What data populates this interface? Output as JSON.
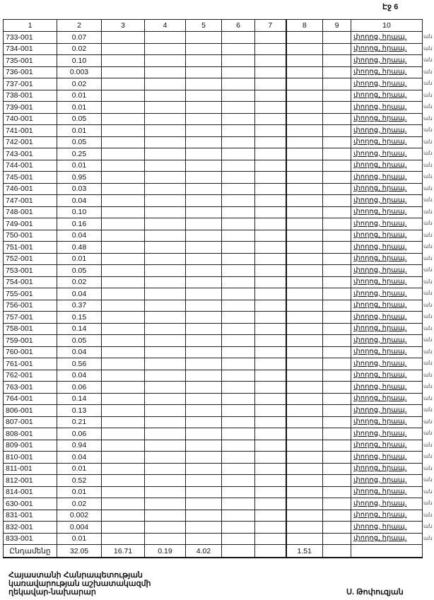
{
  "page_label": "Էջ 6",
  "headers": [
    "1",
    "2",
    "3",
    "4",
    "5",
    "6",
    "7",
    "8",
    "9",
    "10"
  ],
  "rows": [
    {
      "code": "733-001",
      "value": "0.07"
    },
    {
      "code": "734-001",
      "value": "0.02"
    },
    {
      "code": "735-001",
      "value": "0.10"
    },
    {
      "code": "736-001",
      "value": "0.003"
    },
    {
      "code": "737-001",
      "value": "0.02"
    },
    {
      "code": "738-001",
      "value": "0.01"
    },
    {
      "code": "739-001",
      "value": "0.01"
    },
    {
      "code": "740-001",
      "value": "0.05"
    },
    {
      "code": "741-001",
      "value": "0.01"
    },
    {
      "code": "742-001",
      "value": "0.05"
    },
    {
      "code": "743-001",
      "value": "0.25"
    },
    {
      "code": "744-001",
      "value": "0.01"
    },
    {
      "code": "745-001",
      "value": "0.95"
    },
    {
      "code": "746-001",
      "value": "0.03"
    },
    {
      "code": "747-001",
      "value": "0.04"
    },
    {
      "code": "748-001",
      "value": "0.10"
    },
    {
      "code": "749-001",
      "value": "0.16"
    },
    {
      "code": "750-001",
      "value": "0.04"
    },
    {
      "code": "751-001",
      "value": "0.48"
    },
    {
      "code": "752-001",
      "value": "0.01"
    },
    {
      "code": "753-001",
      "value": "0.05"
    },
    {
      "code": "754-001",
      "value": "0.02"
    },
    {
      "code": "755-001",
      "value": "0.04"
    },
    {
      "code": "756-001",
      "value": "0.37"
    },
    {
      "code": "757-001",
      "value": "0.15"
    },
    {
      "code": "758-001",
      "value": "0.14"
    },
    {
      "code": "759-001",
      "value": "0.05"
    },
    {
      "code": "760-001",
      "value": "0.04"
    },
    {
      "code": "761-001",
      "value": "0.56"
    },
    {
      "code": "762-001",
      "value": "0.04"
    },
    {
      "code": "763-001",
      "value": "0.06"
    },
    {
      "code": "764-001",
      "value": "0.14"
    },
    {
      "code": "806-001",
      "value": "0.13"
    },
    {
      "code": "807-001",
      "value": "0.21"
    },
    {
      "code": "808-001",
      "value": "0.06"
    },
    {
      "code": "809-001",
      "value": "0.94"
    },
    {
      "code": "810-001",
      "value": "0.04"
    },
    {
      "code": "811-001",
      "value": "0.01"
    },
    {
      "code": "812-001",
      "value": "0.52"
    },
    {
      "code": "814-001",
      "value": "0.01"
    },
    {
      "code": "630-001",
      "value": "0.02"
    },
    {
      "code": "831-001",
      "value": "0.002"
    },
    {
      "code": "832-001",
      "value": "0.004"
    },
    {
      "code": "833-001",
      "value": "0.01"
    }
  ],
  "row_note": "փողոց, հրապ.",
  "margin_mark": "ան",
  "total": {
    "label": "Ընդամենը",
    "c2": "32.05",
    "c3": "16.71",
    "c4": "0.19",
    "c5": "4.02",
    "c6": "",
    "c7": "",
    "c8": "1.51",
    "c9": "",
    "c10": ""
  },
  "footer": {
    "line1": "Հայաստանի Հանրապետության",
    "line2": "կառավարության աշխատակազմի",
    "line3": "ղեկավար-նախարար",
    "signatory": "Ս. Թոփուզյան"
  }
}
